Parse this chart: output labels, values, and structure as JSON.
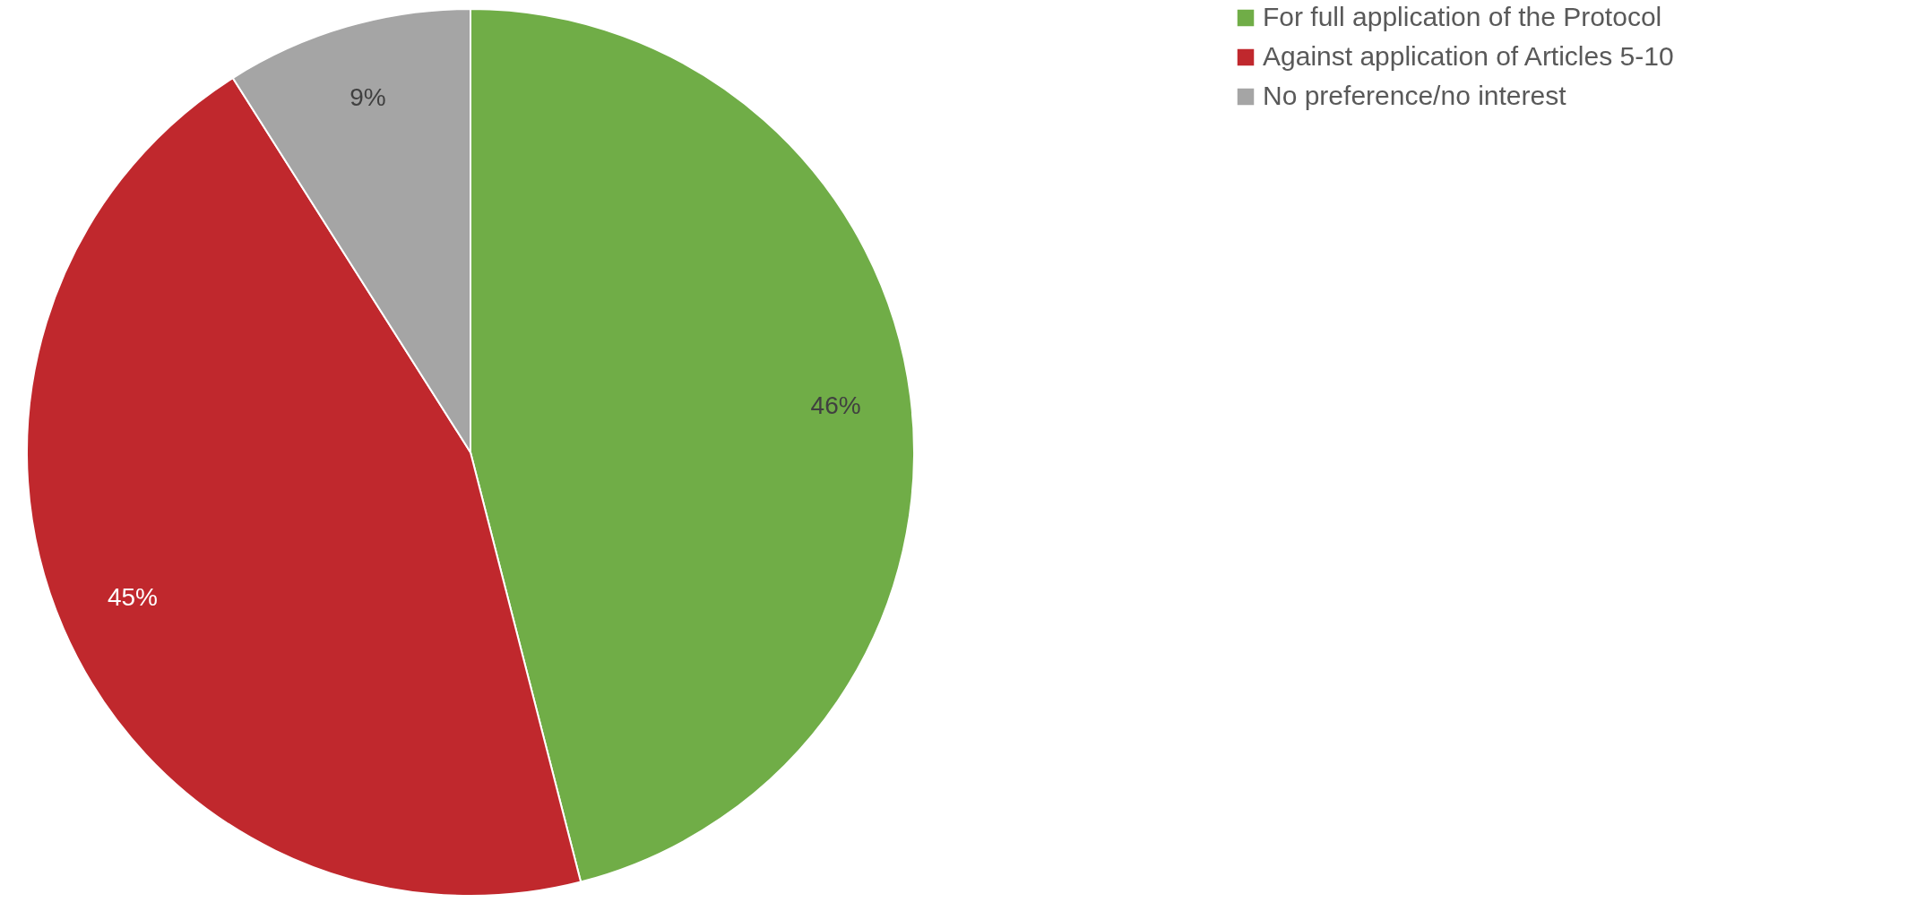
{
  "chart_data": {
    "type": "pie",
    "categories": [
      "For full application of the Protocol",
      "Against application of Articles 5-10",
      "No preference/no interest"
    ],
    "values": [
      46,
      45,
      9
    ],
    "colors": [
      "#70ad47",
      "#c0282d",
      "#a5a5a5"
    ],
    "value_labels": [
      "46%",
      "45%",
      "9%"
    ],
    "legend": "right"
  }
}
